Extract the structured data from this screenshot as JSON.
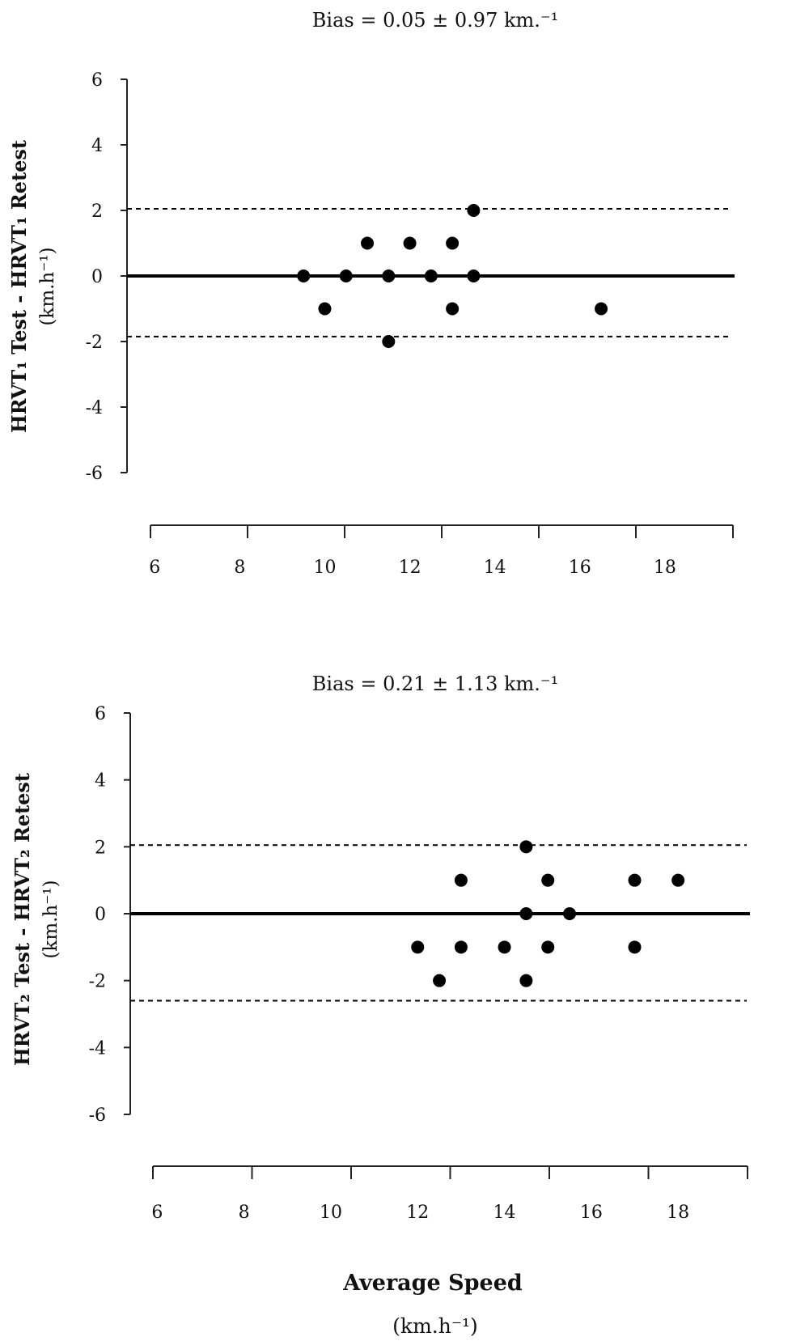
{
  "chart_data": [
    {
      "type": "scatter",
      "title": "Bias = 0.05 ± 0.97 km.⁻¹",
      "ylabel": "HRVT₁ Test - HRVT₁ Retest",
      "yunit": "(km.h⁻¹)",
      "xlim": [
        5.9,
        19.6
      ],
      "ylim": [
        -6,
        6
      ],
      "xticks": [
        6,
        8,
        10,
        12,
        14,
        16,
        18
      ],
      "yticks": [
        6,
        4,
        2,
        0,
        -2,
        -4,
        -6
      ],
      "xtick_labels": [
        "6",
        "8",
        "10",
        "12",
        "14",
        "16",
        "18"
      ],
      "ytick_labels": [
        "6",
        "4",
        "2",
        "0",
        "-2",
        "-4",
        "-6"
      ],
      "bias_line": 0,
      "upper_loa": 2.05,
      "lower_loa": -1.85,
      "points": [
        {
          "x": 9.5,
          "y": 0
        },
        {
          "x": 10.0,
          "y": -1
        },
        {
          "x": 10.5,
          "y": 0
        },
        {
          "x": 11.0,
          "y": 1
        },
        {
          "x": 11.5,
          "y": 0
        },
        {
          "x": 11.5,
          "y": -2
        },
        {
          "x": 12.0,
          "y": 1
        },
        {
          "x": 12.5,
          "y": 0
        },
        {
          "x": 13.0,
          "y": 1
        },
        {
          "x": 13.0,
          "y": -1
        },
        {
          "x": 13.5,
          "y": 2
        },
        {
          "x": 13.5,
          "y": 0
        },
        {
          "x": 16.5,
          "y": -1
        }
      ]
    },
    {
      "type": "scatter",
      "title": "Bias = 0.21 ± 1.13 km.⁻¹",
      "ylabel": "HRVT₂ Test - HRVT₂ Retest",
      "yunit": "(km.h⁻¹)",
      "xlim": [
        5.9,
        19.6
      ],
      "ylim": [
        -6,
        6
      ],
      "xticks": [
        6,
        8,
        10,
        12,
        14,
        16,
        18
      ],
      "yticks": [
        6,
        4,
        2,
        0,
        -2,
        -4,
        -6
      ],
      "xtick_labels": [
        "6",
        "8",
        "10",
        "12",
        "14",
        "16",
        "18"
      ],
      "ytick_labels": [
        "6",
        "4",
        "2",
        "0",
        "-2",
        "-4",
        "-6"
      ],
      "bias_line": 0,
      "upper_loa": 2.05,
      "lower_loa": -2.6,
      "points": [
        {
          "x": 12.0,
          "y": -1
        },
        {
          "x": 12.5,
          "y": -2
        },
        {
          "x": 13.0,
          "y": 1
        },
        {
          "x": 13.0,
          "y": -1
        },
        {
          "x": 14.0,
          "y": -1
        },
        {
          "x": 14.5,
          "y": 2
        },
        {
          "x": 14.5,
          "y": 0
        },
        {
          "x": 14.5,
          "y": -2
        },
        {
          "x": 15.0,
          "y": 1
        },
        {
          "x": 15.0,
          "y": -1
        },
        {
          "x": 15.5,
          "y": 0
        },
        {
          "x": 17.0,
          "y": 1
        },
        {
          "x": 17.0,
          "y": -1
        },
        {
          "x": 18.0,
          "y": 1
        }
      ]
    }
  ],
  "xaxis": {
    "label": "Average Speed",
    "unit": "(km.h⁻¹)"
  }
}
